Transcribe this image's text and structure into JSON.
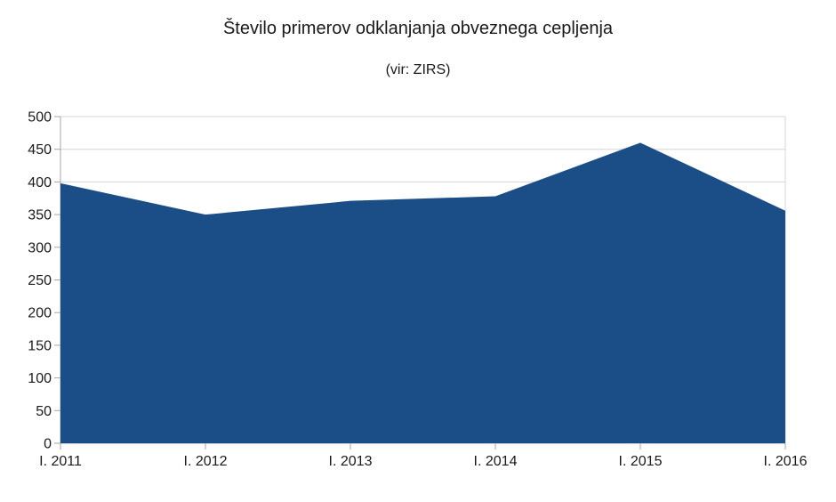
{
  "figure": {
    "title": "Število primerov odklanjanja obveznega cepljenja",
    "subtitle": "(vir: ZIRS)"
  },
  "colors": {
    "area_fill": "#1B4E87",
    "gridline": "#D6D6D6",
    "axis": "#A2A5AE",
    "text": "#1A1A1A",
    "background": "#FFFFFF"
  },
  "chart_data": {
    "type": "area",
    "title": "Število primerov odklanjanja obveznega cepljenja",
    "subtitle": "(vir: ZIRS)",
    "categories": [
      "I. 2011",
      "I. 2012",
      "I. 2013",
      "I. 2014",
      "I. 2015",
      "I. 2016"
    ],
    "values": [
      398,
      350,
      371,
      378,
      460,
      356
    ],
    "xlabel": "",
    "ylabel": "",
    "ylim": [
      0,
      500
    ],
    "ytick_step": 50,
    "yticks": [
      0,
      50,
      100,
      150,
      200,
      250,
      300,
      350,
      400,
      450,
      500
    ],
    "grid": "horizontal",
    "legend": "none",
    "series_name": "Število primerov odklanjanja obveznega cepljenja"
  }
}
